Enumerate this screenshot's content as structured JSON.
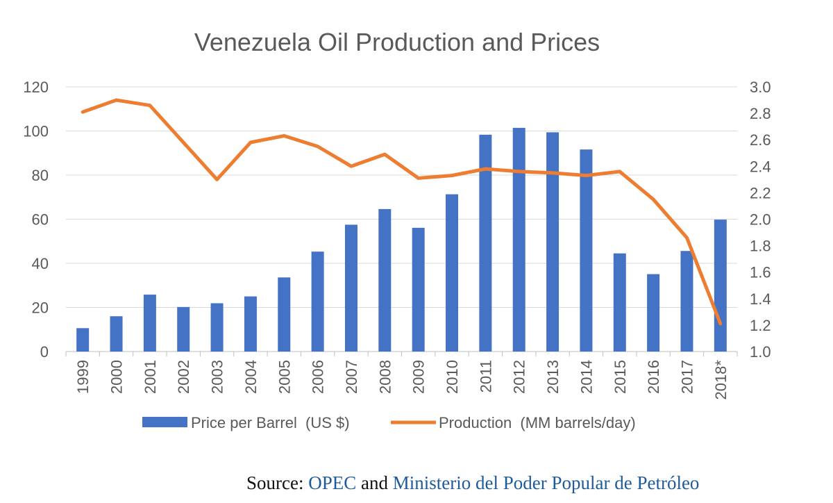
{
  "chart_data": {
    "type": "bar",
    "title": "Venezuela Oil Production and Prices",
    "categories": [
      "1999",
      "2000",
      "2001",
      "2002",
      "2003",
      "2004",
      "2005",
      "2006",
      "2007",
      "2008",
      "2009",
      "2010",
      "2011",
      "2012",
      "2013",
      "2014",
      "2015",
      "2016",
      "2017",
      "2018*"
    ],
    "series": [
      {
        "name": "Price per Barrel  (US $)",
        "type": "bar",
        "axis": "left",
        "color": "#4472c4",
        "values": [
          10.6,
          16.0,
          25.8,
          20.2,
          21.9,
          25.0,
          33.6,
          45.3,
          57.5,
          64.6,
          56.1,
          71.3,
          98.3,
          101.4,
          99.4,
          91.6,
          44.5,
          35.1,
          45.6,
          59.8
        ]
      },
      {
        "name": "Production  (MM barrels/day)",
        "type": "line",
        "axis": "right",
        "color": "#ed7d31",
        "values": [
          2.81,
          2.9,
          2.86,
          2.58,
          2.3,
          2.58,
          2.63,
          2.55,
          2.4,
          2.49,
          2.31,
          2.33,
          2.38,
          2.36,
          2.35,
          2.33,
          2.36,
          2.15,
          1.86,
          1.21
        ]
      }
    ],
    "y_left": {
      "ylim": [
        0,
        120
      ],
      "ticks": [
        "0",
        "20",
        "40",
        "60",
        "80",
        "100",
        "120"
      ]
    },
    "y_right": {
      "ylim": [
        1.0,
        3.0
      ],
      "ticks": [
        "1.0",
        "1.2",
        "1.4",
        "1.6",
        "1.8",
        "2.0",
        "2.2",
        "2.4",
        "2.6",
        "2.8",
        "3.0"
      ]
    },
    "grid": true,
    "legend": "bottom"
  },
  "source": {
    "prefix": "Source: ",
    "link1": "OPEC",
    "joiner": " and ",
    "link2": "Ministerio del Poder Popular de Petróleo"
  }
}
